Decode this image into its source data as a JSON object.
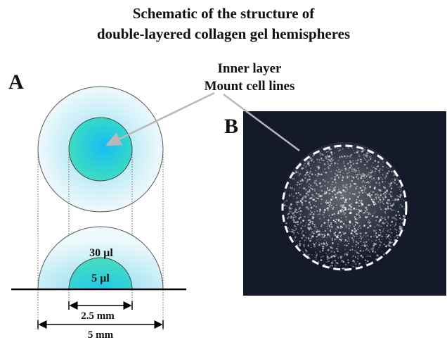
{
  "title": {
    "line1": "Schematic of the structure of",
    "line2": "double-layered collagen gel hemispheres"
  },
  "panels": {
    "a_label": "A",
    "b_label": "B"
  },
  "callout": {
    "line1": "Inner layer",
    "line2": "Mount cell lines"
  },
  "volumes": {
    "outer": "30 µl",
    "inner": "5 µl"
  },
  "dimensions": {
    "inner_diameter": "2.5 mm",
    "outer_diameter": "5 mm"
  },
  "colors": {
    "outer_fill_edge": "#e8f8fa",
    "outer_fill_center": "#7fd6ee",
    "inner_fill_edge": "#3fd9c4",
    "inner_fill_center": "#1fc4f2",
    "micrograph_bg": "#141a2a",
    "dashed_circle": "#ffffff"
  }
}
